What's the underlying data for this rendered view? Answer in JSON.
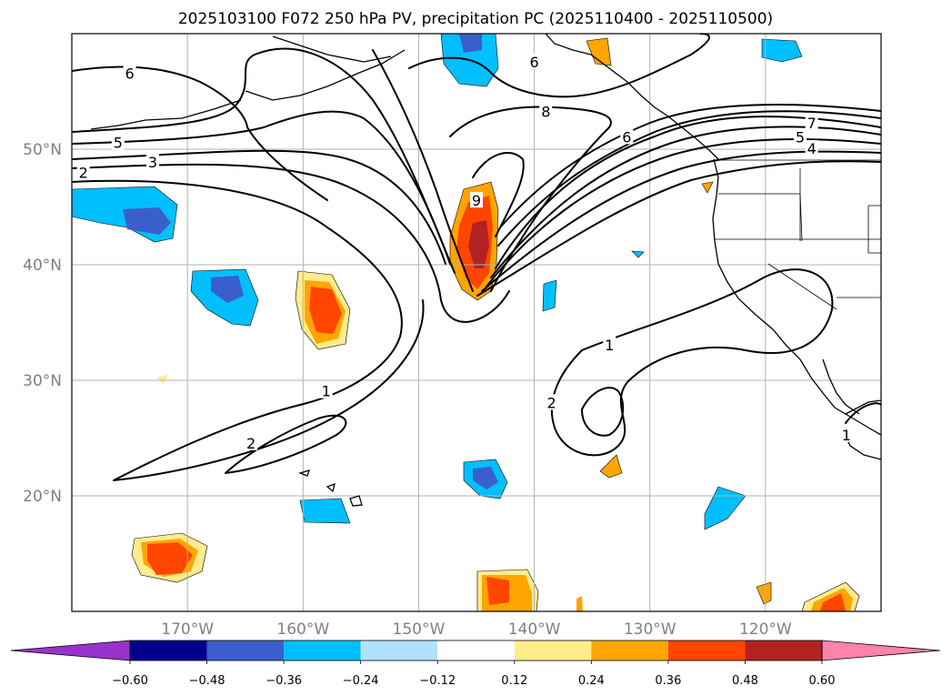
{
  "title": "2025103100 F072 250 hPa PV, precipitation PC (2025110400 - 2025110500)",
  "map": {
    "lon_range": [
      -180,
      -110
    ],
    "lat_range": [
      10,
      60
    ],
    "lat_ticks": [
      {
        "value": 20,
        "label": "20°N"
      },
      {
        "value": 30,
        "label": "30°N"
      },
      {
        "value": 40,
        "label": "40°N"
      },
      {
        "value": 50,
        "label": "50°N"
      }
    ],
    "lon_ticks": [
      {
        "value": -170,
        "label": "170°W"
      },
      {
        "value": -160,
        "label": "160°W"
      },
      {
        "value": -150,
        "label": "150°W"
      },
      {
        "value": -140,
        "label": "140°W"
      },
      {
        "value": -130,
        "label": "130°W"
      },
      {
        "value": -120,
        "label": "120°W"
      }
    ],
    "grid": true,
    "contour_labels": [
      {
        "text": "6",
        "lon": -175,
        "lat": 56.5
      },
      {
        "text": "5",
        "lon": -176,
        "lat": 50.5
      },
      {
        "text": "3",
        "lon": -173,
        "lat": 48.8
      },
      {
        "text": "2",
        "lon": -179,
        "lat": 47.9
      },
      {
        "text": "1",
        "lon": -158,
        "lat": 29
      },
      {
        "text": "2",
        "lon": -164.5,
        "lat": 24.5
      },
      {
        "text": "6",
        "lon": -140,
        "lat": 57.5
      },
      {
        "text": "8",
        "lon": -139,
        "lat": 53.2
      },
      {
        "text": "6",
        "lon": -132,
        "lat": 51
      },
      {
        "text": "9",
        "lon": -145,
        "lat": 45.5
      },
      {
        "text": "7",
        "lon": -116,
        "lat": 52.2
      },
      {
        "text": "5",
        "lon": -117,
        "lat": 51
      },
      {
        "text": "4",
        "lon": -116,
        "lat": 50
      },
      {
        "text": "1",
        "lon": -133.5,
        "lat": 33
      },
      {
        "text": "2",
        "lon": -138.5,
        "lat": 28
      },
      {
        "text": "1",
        "lon": -113,
        "lat": 25.2
      }
    ]
  },
  "colorbar": {
    "levels": [
      "−0.60",
      "−0.48",
      "−0.36",
      "−0.24",
      "−0.12",
      "0.12",
      "0.24",
      "0.36",
      "0.48",
      "0.60"
    ],
    "colors": [
      "#9932cc",
      "#00008b",
      "#3a5fcd",
      "#00bfff",
      "#b0e2ff",
      "#ffffff",
      "#ffec8b",
      "#ffa500",
      "#ff4500",
      "#b22222",
      "#ff82ab"
    ]
  }
}
